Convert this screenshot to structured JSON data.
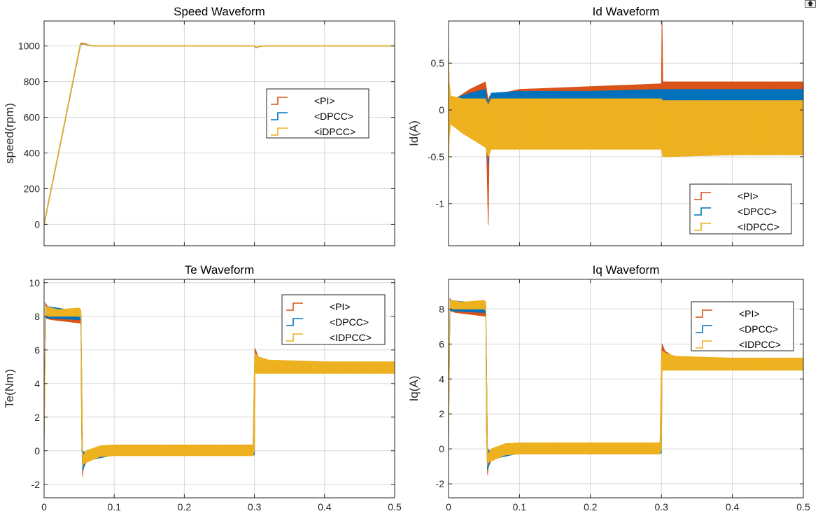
{
  "colors": {
    "pi": "#D95319",
    "dpcc": "#0072BD",
    "idpcc": "#EDB120",
    "grid": "#262626",
    "axis": "#262626",
    "background": "#ffffff"
  },
  "toolbar": {
    "icon": "export-arrow-icon"
  },
  "chart_data": [
    {
      "id": "speed",
      "type": "line",
      "title": "Speed Waveform",
      "xlabel": "",
      "ylabel": "speed(rpm)",
      "xlim": [
        0,
        0.5
      ],
      "ylim": [
        -120,
        1140
      ],
      "xticks": [
        0,
        0.1,
        0.2,
        0.3,
        0.4,
        0.5
      ],
      "xticklabels": [],
      "yticks": [
        0,
        200,
        400,
        600,
        800,
        1000
      ],
      "yticklabels": [
        "0",
        "200",
        "400",
        "600",
        "800",
        "1000"
      ],
      "grid": true,
      "legend": {
        "position": "center-right",
        "entries": [
          "<PI>",
          "<DPCC>",
          "<iDPCC>"
        ]
      },
      "series": [
        {
          "name": "<PI>",
          "color_key": "pi",
          "kind": "line",
          "x": [
            0,
            0.052,
            0.057,
            0.065,
            0.075,
            0.1,
            0.3,
            0.302,
            0.306,
            0.312,
            0.5
          ],
          "y": [
            0,
            1010,
            1012,
            1003,
            1000,
            1000,
            1000,
            990,
            996,
            1000,
            1000
          ]
        },
        {
          "name": "<DPCC>",
          "color_key": "dpcc",
          "kind": "line",
          "x": [
            0,
            0.052,
            0.057,
            0.065,
            0.075,
            0.1,
            0.3,
            0.302,
            0.306,
            0.312,
            0.5
          ],
          "y": [
            0,
            1012,
            1014,
            1003,
            1000,
            1000,
            1000,
            991,
            997,
            1000,
            1000
          ]
        },
        {
          "name": "<iDPCC>",
          "color_key": "idpcc",
          "kind": "line",
          "x": [
            0,
            0.052,
            0.057,
            0.065,
            0.075,
            0.1,
            0.3,
            0.302,
            0.306,
            0.312,
            0.5
          ],
          "y": [
            0,
            1015,
            1016,
            1004,
            1000,
            1000,
            1000,
            992,
            997,
            1000,
            1000
          ]
        }
      ]
    },
    {
      "id": "id",
      "type": "line",
      "title": "Id Waveform",
      "xlabel": "",
      "ylabel": "Id(A)",
      "xlim": [
        0,
        0.5
      ],
      "ylim": [
        -1.45,
        0.95
      ],
      "xticks": [
        0,
        0.1,
        0.2,
        0.3,
        0.4,
        0.5
      ],
      "xticklabels": [],
      "yticks": [
        -1,
        -0.5,
        0,
        0.5
      ],
      "yticklabels": [
        "-1",
        "-0.5",
        "0",
        "0.5"
      ],
      "grid": true,
      "legend": {
        "position": "bottom-right",
        "entries": [
          "<PI>",
          "<DPCC>",
          "<IDPCC>"
        ]
      },
      "series": [
        {
          "name": "<PI>",
          "color_key": "pi",
          "kind": "band",
          "x": [
            0,
            0.01,
            0.03,
            0.052,
            0.056,
            0.058,
            0.1,
            0.2,
            0.3,
            0.301,
            0.302,
            0.305,
            0.4,
            0.5
          ],
          "upper": [
            0.1,
            0.12,
            0.22,
            0.3,
            0.1,
            0.15,
            0.22,
            0.25,
            0.28,
            0.95,
            0.3,
            0.3,
            0.3,
            0.3
          ],
          "lower": [
            -0.1,
            -0.05,
            0,
            0.1,
            -1.23,
            0.05,
            0.1,
            0.12,
            0.12,
            0.1,
            0.1,
            0.12,
            0.12,
            0.12
          ]
        },
        {
          "name": "<DPCC>",
          "color_key": "dpcc",
          "kind": "band",
          "x": [
            0,
            0.03,
            0.052,
            0.056,
            0.06,
            0.1,
            0.2,
            0.3,
            0.305,
            0.4,
            0.5
          ],
          "upper": [
            0.1,
            0.18,
            0.22,
            0.05,
            0.18,
            0.2,
            0.2,
            0.22,
            0.22,
            0.22,
            0.22
          ],
          "lower": [
            -0.05,
            0,
            0.05,
            -0.6,
            0.05,
            0.08,
            0.08,
            0.08,
            0.08,
            0.08,
            0.08
          ]
        },
        {
          "name": "<IDPCC>",
          "color_key": "idpcc",
          "kind": "band",
          "x": [
            0,
            0.001,
            0.003,
            0.02,
            0.052,
            0.056,
            0.06,
            0.1,
            0.2,
            0.3,
            0.302,
            0.4,
            0.5
          ],
          "upper": [
            0.7,
            0.3,
            0.15,
            0.12,
            0.12,
            0.05,
            0.12,
            0.12,
            0.12,
            0.12,
            0.1,
            0.1,
            0.1
          ],
          "lower": [
            -0.7,
            -0.3,
            -0.15,
            -0.25,
            -0.4,
            -0.5,
            -0.42,
            -0.42,
            -0.42,
            -0.42,
            -0.5,
            -0.48,
            -0.48
          ]
        }
      ]
    },
    {
      "id": "te",
      "type": "line",
      "title": "Te Waveform",
      "xlabel": "",
      "ylabel": "Te(Nm)",
      "xlim": [
        0,
        0.5
      ],
      "ylim": [
        -2.8,
        10.2
      ],
      "xticks": [
        0,
        0.1,
        0.2,
        0.3,
        0.4,
        0.5
      ],
      "xticklabels": [
        "0",
        "0.1",
        "0.2",
        "0.3",
        "0.4",
        "0.5"
      ],
      "yticks": [
        -2,
        0,
        2,
        4,
        6,
        8,
        10
      ],
      "yticklabels": [
        "-2",
        "0",
        "2",
        "4",
        "6",
        "8",
        "10"
      ],
      "grid": true,
      "legend": {
        "position": "top-right",
        "entries": [
          "<PI>",
          "<DPCC>",
          "<IDPCC>"
        ]
      },
      "series": [
        {
          "name": "<PI>",
          "color_key": "pi",
          "kind": "band",
          "x": [
            0,
            0.002,
            0.01,
            0.05,
            0.0525,
            0.0535,
            0.055,
            0.056,
            0.06,
            0.08,
            0.1,
            0.2,
            0.298,
            0.3,
            0.301,
            0.305,
            0.32,
            0.4,
            0.5
          ],
          "upper": [
            0.5,
            8.8,
            8.2,
            8.0,
            8.2,
            5.0,
            0.0,
            -0.5,
            -0.3,
            0.2,
            0.3,
            0.3,
            0.3,
            5.0,
            6.1,
            5.6,
            5.3,
            5.2,
            5.2
          ],
          "lower": [
            0.0,
            7.9,
            7.8,
            7.6,
            7.6,
            1.0,
            -1.55,
            -1.0,
            -0.7,
            -0.3,
            -0.25,
            -0.25,
            -0.25,
            0.0,
            4.7,
            4.7,
            4.7,
            4.7,
            4.7
          ]
        },
        {
          "name": "<DPCC>",
          "color_key": "dpcc",
          "kind": "band",
          "x": [
            0,
            0.002,
            0.05,
            0.0525,
            0.0535,
            0.055,
            0.06,
            0.1,
            0.3,
            0.301,
            0.305,
            0.4,
            0.5
          ],
          "upper": [
            0.5,
            8.6,
            8.3,
            8.3,
            5.2,
            0.0,
            -0.2,
            0.3,
            0.3,
            5.4,
            5.4,
            5.2,
            5.2
          ],
          "lower": [
            0.0,
            7.9,
            7.8,
            7.8,
            1.0,
            -1.2,
            -0.6,
            -0.25,
            -0.25,
            4.7,
            4.7,
            4.7,
            4.7
          ]
        },
        {
          "name": "<IDPCC>",
          "color_key": "idpcc",
          "kind": "band",
          "x": [
            0,
            0.002,
            0.02,
            0.05,
            0.0525,
            0.0535,
            0.055,
            0.056,
            0.06,
            0.08,
            0.1,
            0.2,
            0.298,
            0.3,
            0.301,
            0.305,
            0.32,
            0.4,
            0.5
          ],
          "upper": [
            0.5,
            8.6,
            8.4,
            8.5,
            8.4,
            5.0,
            0.0,
            -0.3,
            0.0,
            0.3,
            0.35,
            0.35,
            0.35,
            5.0,
            5.8,
            5.6,
            5.4,
            5.3,
            5.3
          ],
          "lower": [
            0.0,
            8.0,
            8.0,
            8.0,
            7.9,
            1.0,
            -1.0,
            -0.8,
            -0.7,
            -0.35,
            -0.3,
            -0.3,
            -0.3,
            0.0,
            4.6,
            4.6,
            4.6,
            4.6,
            4.6
          ]
        }
      ]
    },
    {
      "id": "iq",
      "type": "line",
      "title": "Iq Waveform",
      "xlabel": "",
      "ylabel": "Iq(A)",
      "xlim": [
        0,
        0.5
      ],
      "ylim": [
        -2.8,
        9.7
      ],
      "xticks": [
        0,
        0.1,
        0.2,
        0.3,
        0.4,
        0.5
      ],
      "xticklabels": [
        "0",
        "0.1",
        "0.2",
        "0.3",
        "0.4",
        "0.5"
      ],
      "yticks": [
        -2,
        0,
        2,
        4,
        6,
        8
      ],
      "yticklabels": [
        "-2",
        "0",
        "2",
        "4",
        "6",
        "8"
      ],
      "grid": true,
      "legend": {
        "position": "top-right",
        "entries": [
          "<PI>",
          "<DPCC>",
          "<IDPCC>"
        ]
      },
      "series": [
        {
          "name": "<PI>",
          "color_key": "pi",
          "kind": "band",
          "x": [
            0,
            0.002,
            0.01,
            0.05,
            0.0525,
            0.0535,
            0.055,
            0.056,
            0.06,
            0.08,
            0.1,
            0.2,
            0.298,
            0.3,
            0.301,
            0.305,
            0.32,
            0.4,
            0.5
          ],
          "upper": [
            0.5,
            8.6,
            8.2,
            8.0,
            8.2,
            5.0,
            0.0,
            -0.5,
            -0.3,
            0.2,
            0.3,
            0.3,
            0.3,
            5.0,
            6.0,
            5.6,
            5.2,
            5.1,
            5.1
          ],
          "lower": [
            0.0,
            7.9,
            7.8,
            7.6,
            7.6,
            1.0,
            -1.5,
            -1.0,
            -0.7,
            -0.3,
            -0.25,
            -0.25,
            -0.25,
            0.0,
            4.6,
            4.6,
            4.6,
            4.6,
            4.6
          ]
        },
        {
          "name": "<DPCC>",
          "color_key": "dpcc",
          "kind": "band",
          "x": [
            0,
            0.002,
            0.05,
            0.0525,
            0.0535,
            0.055,
            0.06,
            0.1,
            0.3,
            0.301,
            0.305,
            0.4,
            0.5
          ],
          "upper": [
            0.5,
            8.5,
            8.3,
            8.3,
            5.2,
            0.0,
            -0.2,
            0.3,
            0.3,
            5.4,
            5.3,
            5.1,
            5.1
          ],
          "lower": [
            0.0,
            7.9,
            7.8,
            7.8,
            1.0,
            -1.2,
            -0.6,
            -0.25,
            -0.25,
            4.6,
            4.6,
            4.6,
            4.6
          ]
        },
        {
          "name": "<IDPCC>",
          "color_key": "idpcc",
          "kind": "band",
          "x": [
            0,
            0.002,
            0.02,
            0.05,
            0.0525,
            0.0535,
            0.055,
            0.056,
            0.06,
            0.08,
            0.1,
            0.2,
            0.298,
            0.3,
            0.301,
            0.305,
            0.32,
            0.4,
            0.5
          ],
          "upper": [
            0.5,
            8.5,
            8.4,
            8.5,
            8.4,
            5.0,
            0.0,
            -0.3,
            0.0,
            0.3,
            0.35,
            0.35,
            0.35,
            5.0,
            5.6,
            5.5,
            5.3,
            5.2,
            5.2
          ],
          "lower": [
            0.0,
            8.0,
            8.0,
            8.0,
            7.9,
            1.0,
            -1.0,
            -0.8,
            -0.7,
            -0.35,
            -0.3,
            -0.3,
            -0.3,
            0.0,
            4.5,
            4.5,
            4.5,
            4.5,
            4.5
          ]
        }
      ]
    }
  ]
}
